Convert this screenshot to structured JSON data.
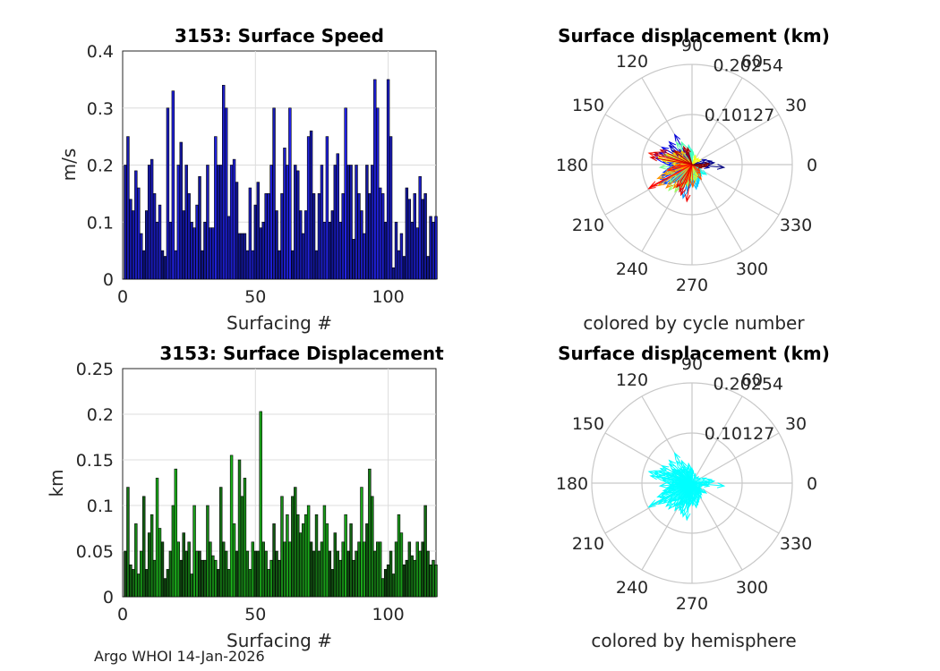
{
  "footer": "Argo WHOI 14-Jan-2026",
  "chart_data": [
    {
      "type": "bar",
      "title": "3153: Surface Speed",
      "xlabel": "Surfacing #",
      "ylabel": "m/s",
      "xlim": [
        0,
        118
      ],
      "ylim": [
        0,
        0.4
      ],
      "xticks": [
        "0",
        "50",
        "100"
      ],
      "yticks": [
        "0",
        "0.1",
        "0.2",
        "0.3",
        "0.4"
      ],
      "grid": true,
      "colors": {
        "start": "#0a0f6e",
        "end": "#2727ff"
      },
      "values": [
        0.2,
        0.25,
        0.14,
        0.12,
        0.19,
        0.16,
        0.08,
        0.05,
        0.12,
        0.2,
        0.21,
        0.15,
        0.1,
        0.13,
        0.05,
        0.04,
        0.3,
        0.1,
        0.33,
        0.05,
        0.2,
        0.24,
        0.12,
        0.2,
        0.15,
        0.1,
        0.09,
        0.13,
        0.18,
        0.05,
        0.1,
        0.2,
        0.09,
        0.09,
        0.25,
        0.2,
        0.2,
        0.34,
        0.3,
        0.11,
        0.2,
        0.21,
        0.17,
        0.08,
        0.08,
        0.08,
        0.05,
        0.16,
        0.05,
        0.13,
        0.17,
        0.09,
        0.1,
        0.15,
        0.15,
        0.2,
        0.3,
        0.12,
        0.05,
        0.15,
        0.23,
        0.2,
        0.3,
        0.05,
        0.2,
        0.19,
        0.12,
        0.08,
        0.12,
        0.25,
        0.26,
        0.15,
        0.05,
        0.15,
        0.2,
        0.1,
        0.25,
        0.1,
        0.12,
        0.2,
        0.22,
        0.1,
        0.15,
        0.3,
        0.2,
        0.2,
        0.07,
        0.2,
        0.15,
        0.12,
        0.08,
        0.2,
        0.15,
        0.2,
        0.35,
        0.3,
        0.16,
        0.15,
        0.1,
        0.35,
        0.25,
        0.02,
        0.1,
        0.05,
        0.08,
        0.04,
        0.16,
        0.14,
        0.1,
        0.15,
        0.09,
        0.18,
        0.14,
        0.15,
        0.04,
        0.11,
        0.1,
        0.11
      ]
    },
    {
      "type": "polar-compass",
      "title": "Surface displacement (km)",
      "caption": "colored by cycle number",
      "angle_labels": [
        "0",
        "30",
        "60",
        "90",
        "120",
        "150",
        "180",
        "210",
        "240",
        "270",
        "300",
        "330"
      ],
      "radius_labels": [
        "0.10127",
        "0.20254"
      ],
      "rmax": 0.20254,
      "color_mode": "jet",
      "vectors": [
        [
          0.065,
          355
        ],
        [
          0.045,
          5
        ],
        [
          0.04,
          10
        ],
        [
          0.035,
          350
        ],
        [
          0.03,
          20
        ],
        [
          0.06,
          140
        ],
        [
          0.05,
          145
        ],
        [
          0.04,
          130
        ],
        [
          0.035,
          120
        ],
        [
          0.025,
          110
        ],
        [
          0.07,
          120
        ],
        [
          0.065,
          135
        ],
        [
          0.07,
          150
        ],
        [
          0.07,
          160
        ],
        [
          0.08,
          165
        ],
        [
          0.075,
          170
        ],
        [
          0.06,
          175
        ],
        [
          0.05,
          180
        ],
        [
          0.045,
          185
        ],
        [
          0.05,
          190
        ],
        [
          0.06,
          195
        ],
        [
          0.065,
          200
        ],
        [
          0.07,
          205
        ],
        [
          0.075,
          210
        ],
        [
          0.07,
          215
        ],
        [
          0.06,
          220
        ],
        [
          0.05,
          225
        ],
        [
          0.045,
          230
        ],
        [
          0.04,
          235
        ],
        [
          0.05,
          240
        ],
        [
          0.06,
          245
        ],
        [
          0.065,
          250
        ],
        [
          0.07,
          255
        ],
        [
          0.055,
          260
        ],
        [
          0.045,
          265
        ],
        [
          0.04,
          270
        ],
        [
          0.035,
          275
        ],
        [
          0.05,
          280
        ],
        [
          0.045,
          285
        ],
        [
          0.04,
          290
        ],
        [
          0.035,
          295
        ],
        [
          0.03,
          300
        ],
        [
          0.025,
          305
        ],
        [
          0.03,
          310
        ],
        [
          0.025,
          315
        ],
        [
          0.03,
          320
        ],
        [
          0.035,
          325
        ],
        [
          0.02,
          330
        ],
        [
          0.02,
          340
        ],
        [
          0.04,
          100
        ],
        [
          0.03,
          95
        ],
        [
          0.03,
          90
        ],
        [
          0.025,
          85
        ],
        [
          0.05,
          115
        ],
        [
          0.055,
          125
        ],
        [
          0.045,
          155
        ],
        [
          0.06,
          160
        ],
        [
          0.065,
          185
        ],
        [
          0.055,
          200
        ],
        [
          0.05,
          210
        ],
        [
          0.06,
          218
        ],
        [
          0.07,
          228
        ],
        [
          0.065,
          238
        ],
        [
          0.05,
          248
        ],
        [
          0.045,
          258
        ],
        [
          0.04,
          262
        ],
        [
          0.03,
          268
        ],
        [
          0.035,
          280
        ],
        [
          0.03,
          288
        ],
        [
          0.025,
          298
        ],
        [
          0.02,
          70
        ],
        [
          0.018,
          45
        ],
        [
          0.015,
          60
        ],
        [
          0.02,
          30
        ],
        [
          0.025,
          200
        ],
        [
          0.04,
          178
        ],
        [
          0.06,
          172
        ],
        [
          0.07,
          168
        ],
        [
          0.055,
          158
        ],
        [
          0.045,
          148
        ],
        [
          0.04,
          138
        ],
        [
          0.035,
          128
        ],
        [
          0.03,
          150
        ],
        [
          0.05,
          192
        ],
        [
          0.06,
          198
        ],
        [
          0.075,
          202
        ],
        [
          0.08,
          212
        ],
        [
          0.07,
          222
        ],
        [
          0.06,
          232
        ],
        [
          0.05,
          242
        ],
        [
          0.04,
          252
        ],
        [
          0.03,
          256
        ],
        [
          0.045,
          272
        ],
        [
          0.035,
          302
        ],
        [
          0.025,
          312
        ],
        [
          0.02,
          322
        ],
        [
          0.02,
          355
        ],
        [
          0.03,
          182
        ],
        [
          0.04,
          187
        ],
        [
          0.05,
          193
        ],
        [
          0.09,
          165
        ],
        [
          0.095,
          208
        ],
        [
          0.1,
          209
        ],
        [
          0.065,
          250
        ],
        [
          0.075,
          262
        ],
        [
          0.06,
          245
        ],
        [
          0.055,
          236
        ],
        [
          0.085,
          170
        ],
        [
          0.08,
          162
        ],
        [
          0.07,
          155
        ],
        [
          0.045,
          142
        ],
        [
          0.04,
          115
        ],
        [
          0.035,
          105
        ],
        [
          0.03,
          112
        ],
        [
          0.02,
          340
        ],
        [
          0.025,
          350
        ],
        [
          0.03,
          355
        ],
        [
          0.035,
          2
        ]
      ]
    },
    {
      "type": "bar",
      "title": "3153: Surface Displacement",
      "xlabel": "Surfacing #",
      "ylabel": "km",
      "xlim": [
        0,
        118
      ],
      "ylim": [
        0,
        0.25
      ],
      "xticks": [
        "0",
        "50",
        "100"
      ],
      "yticks": [
        "0",
        "0.05",
        "0.1",
        "0.15",
        "0.2",
        "0.25"
      ],
      "grid": true,
      "colors": {
        "start": "#0d2e0d",
        "end": "#22ee22"
      },
      "values": [
        0.05,
        0.12,
        0.035,
        0.03,
        0.08,
        0.025,
        0.05,
        0.11,
        0.03,
        0.07,
        0.09,
        0.04,
        0.13,
        0.075,
        0.06,
        0.02,
        0.03,
        0.05,
        0.1,
        0.14,
        0.06,
        0.04,
        0.07,
        0.05,
        0.06,
        0.025,
        0.1,
        0.05,
        0.05,
        0.04,
        0.04,
        0.1,
        0.06,
        0.045,
        0.04,
        0.03,
        0.12,
        0.06,
        0.05,
        0.03,
        0.155,
        0.08,
        0.05,
        0.15,
        0.11,
        0.13,
        0.05,
        0.03,
        0.06,
        0.05,
        0.05,
        0.203,
        0.06,
        0.05,
        0.03,
        0.04,
        0.08,
        0.05,
        0.04,
        0.11,
        0.06,
        0.09,
        0.06,
        0.11,
        0.12,
        0.09,
        0.07,
        0.08,
        0.09,
        0.1,
        0.06,
        0.05,
        0.09,
        0.05,
        0.06,
        0.1,
        0.08,
        0.05,
        0.03,
        0.07,
        0.05,
        0.04,
        0.06,
        0.09,
        0.05,
        0.08,
        0.04,
        0.05,
        0.06,
        0.12,
        0.06,
        0.08,
        0.14,
        0.11,
        0.05,
        0.06,
        0.06,
        0.02,
        0.03,
        0.035,
        0.05,
        0.025,
        0.06,
        0.09,
        0.07,
        0.035,
        0.04,
        0.06,
        0.045,
        0.04,
        0.06,
        0.05,
        0.06,
        0.1,
        0.05,
        0.035,
        0.04,
        0.035
      ]
    },
    {
      "type": "polar-compass",
      "title": "Surface displacement (km)",
      "caption": "colored by hemisphere",
      "angle_labels": [
        "0",
        "30",
        "60",
        "90",
        "120",
        "150",
        "180",
        "210",
        "240",
        "270",
        "300",
        "330"
      ],
      "radius_labels": [
        "0.10127",
        "0.20254"
      ],
      "rmax": 0.20254,
      "color_mode": "single",
      "color": "#00ffff",
      "vectors": [
        [
          0.065,
          355
        ],
        [
          0.045,
          5
        ],
        [
          0.04,
          10
        ],
        [
          0.035,
          350
        ],
        [
          0.03,
          20
        ],
        [
          0.06,
          140
        ],
        [
          0.05,
          145
        ],
        [
          0.04,
          130
        ],
        [
          0.035,
          120
        ],
        [
          0.025,
          110
        ],
        [
          0.07,
          120
        ],
        [
          0.065,
          135
        ],
        [
          0.07,
          150
        ],
        [
          0.07,
          160
        ],
        [
          0.08,
          165
        ],
        [
          0.075,
          170
        ],
        [
          0.06,
          175
        ],
        [
          0.05,
          180
        ],
        [
          0.045,
          185
        ],
        [
          0.05,
          190
        ],
        [
          0.06,
          195
        ],
        [
          0.065,
          200
        ],
        [
          0.07,
          205
        ],
        [
          0.075,
          210
        ],
        [
          0.07,
          215
        ],
        [
          0.06,
          220
        ],
        [
          0.05,
          225
        ],
        [
          0.045,
          230
        ],
        [
          0.04,
          235
        ],
        [
          0.05,
          240
        ],
        [
          0.06,
          245
        ],
        [
          0.065,
          250
        ],
        [
          0.07,
          255
        ],
        [
          0.055,
          260
        ],
        [
          0.045,
          265
        ],
        [
          0.04,
          270
        ],
        [
          0.035,
          275
        ],
        [
          0.05,
          280
        ],
        [
          0.045,
          285
        ],
        [
          0.04,
          290
        ],
        [
          0.035,
          295
        ],
        [
          0.03,
          300
        ],
        [
          0.025,
          305
        ],
        [
          0.03,
          310
        ],
        [
          0.025,
          315
        ],
        [
          0.03,
          320
        ],
        [
          0.035,
          325
        ],
        [
          0.02,
          330
        ],
        [
          0.02,
          340
        ],
        [
          0.04,
          100
        ],
        [
          0.03,
          95
        ],
        [
          0.03,
          90
        ],
        [
          0.025,
          85
        ],
        [
          0.05,
          115
        ],
        [
          0.055,
          125
        ],
        [
          0.045,
          155
        ],
        [
          0.06,
          160
        ],
        [
          0.065,
          185
        ],
        [
          0.055,
          200
        ],
        [
          0.05,
          210
        ],
        [
          0.06,
          218
        ],
        [
          0.07,
          228
        ],
        [
          0.065,
          238
        ],
        [
          0.05,
          248
        ],
        [
          0.045,
          258
        ],
        [
          0.04,
          262
        ],
        [
          0.03,
          268
        ],
        [
          0.035,
          280
        ],
        [
          0.03,
          288
        ],
        [
          0.025,
          298
        ],
        [
          0.02,
          70
        ],
        [
          0.018,
          45
        ],
        [
          0.015,
          60
        ],
        [
          0.02,
          30
        ],
        [
          0.025,
          200
        ],
        [
          0.04,
          178
        ],
        [
          0.06,
          172
        ],
        [
          0.07,
          168
        ],
        [
          0.055,
          158
        ],
        [
          0.045,
          148
        ],
        [
          0.04,
          138
        ],
        [
          0.035,
          128
        ],
        [
          0.03,
          150
        ],
        [
          0.05,
          192
        ],
        [
          0.06,
          198
        ],
        [
          0.075,
          202
        ],
        [
          0.08,
          212
        ],
        [
          0.07,
          222
        ],
        [
          0.06,
          232
        ],
        [
          0.05,
          242
        ],
        [
          0.04,
          252
        ],
        [
          0.03,
          256
        ],
        [
          0.045,
          272
        ],
        [
          0.035,
          302
        ],
        [
          0.025,
          312
        ],
        [
          0.02,
          322
        ],
        [
          0.02,
          355
        ],
        [
          0.03,
          182
        ],
        [
          0.04,
          187
        ],
        [
          0.05,
          193
        ],
        [
          0.09,
          165
        ],
        [
          0.095,
          208
        ],
        [
          0.1,
          209
        ],
        [
          0.065,
          250
        ],
        [
          0.075,
          262
        ],
        [
          0.06,
          245
        ],
        [
          0.055,
          236
        ],
        [
          0.085,
          170
        ],
        [
          0.08,
          162
        ],
        [
          0.07,
          155
        ],
        [
          0.045,
          142
        ],
        [
          0.04,
          115
        ],
        [
          0.035,
          105
        ],
        [
          0.03,
          112
        ],
        [
          0.02,
          340
        ],
        [
          0.025,
          350
        ],
        [
          0.03,
          355
        ],
        [
          0.035,
          2
        ]
      ]
    }
  ]
}
